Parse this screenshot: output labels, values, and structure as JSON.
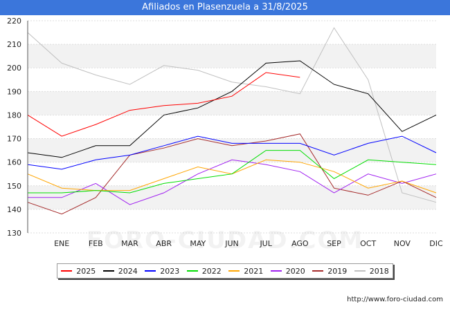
{
  "title": "Afiliados en Plasenzuela a 31/8/2025",
  "source": "http://www.foro-ciudad.com",
  "watermark": "FORO-CIUDAD.COM",
  "chart_data": {
    "type": "line",
    "title": "Afiliados en Plasenzuela a 31/8/2025",
    "xlabel": "",
    "ylabel": "",
    "categories": [
      "",
      "ENE",
      "FEB",
      "MAR",
      "ABR",
      "MAY",
      "JUN",
      "JUL",
      "AGO",
      "SEP",
      "OCT",
      "NOV",
      "DIC"
    ],
    "ylim": [
      130,
      220
    ],
    "yticks": [
      130,
      140,
      150,
      160,
      170,
      180,
      190,
      200,
      210,
      220
    ],
    "grid": "horizontal bands",
    "legend_position": "bottom",
    "series": [
      {
        "name": "2025",
        "color": "#ff0000",
        "values": [
          180,
          171,
          176,
          182,
          184,
          185,
          188,
          198,
          196,
          null,
          null,
          null,
          null
        ]
      },
      {
        "name": "2024",
        "color": "#000000",
        "values": [
          164,
          162,
          167,
          167,
          180,
          183,
          190,
          202,
          203,
          193,
          189,
          173,
          180
        ]
      },
      {
        "name": "2023",
        "color": "#0000ff",
        "values": [
          159,
          157,
          161,
          163,
          167,
          171,
          168,
          168,
          168,
          163,
          168,
          171,
          164
        ]
      },
      {
        "name": "2022",
        "color": "#00dd00",
        "values": [
          147,
          147,
          148,
          147,
          151,
          153,
          155,
          165,
          165,
          153,
          161,
          160,
          159
        ]
      },
      {
        "name": "2021",
        "color": "#ffa500",
        "values": [
          155,
          149,
          148,
          148,
          153,
          158,
          155,
          161,
          160,
          156,
          149,
          152,
          147
        ]
      },
      {
        "name": "2020",
        "color": "#a020f0",
        "values": [
          145,
          145,
          151,
          142,
          147,
          155,
          161,
          159,
          156,
          147,
          155,
          151,
          155
        ]
      },
      {
        "name": "2019",
        "color": "#a52a2a",
        "values": [
          143,
          138,
          145,
          163,
          166,
          170,
          167,
          169,
          172,
          149,
          146,
          152,
          145
        ]
      },
      {
        "name": "2018",
        "color": "#c0c0c0",
        "values": [
          215,
          202,
          197,
          193,
          201,
          199,
          194,
          192,
          189,
          217,
          195,
          147,
          143
        ]
      }
    ]
  }
}
